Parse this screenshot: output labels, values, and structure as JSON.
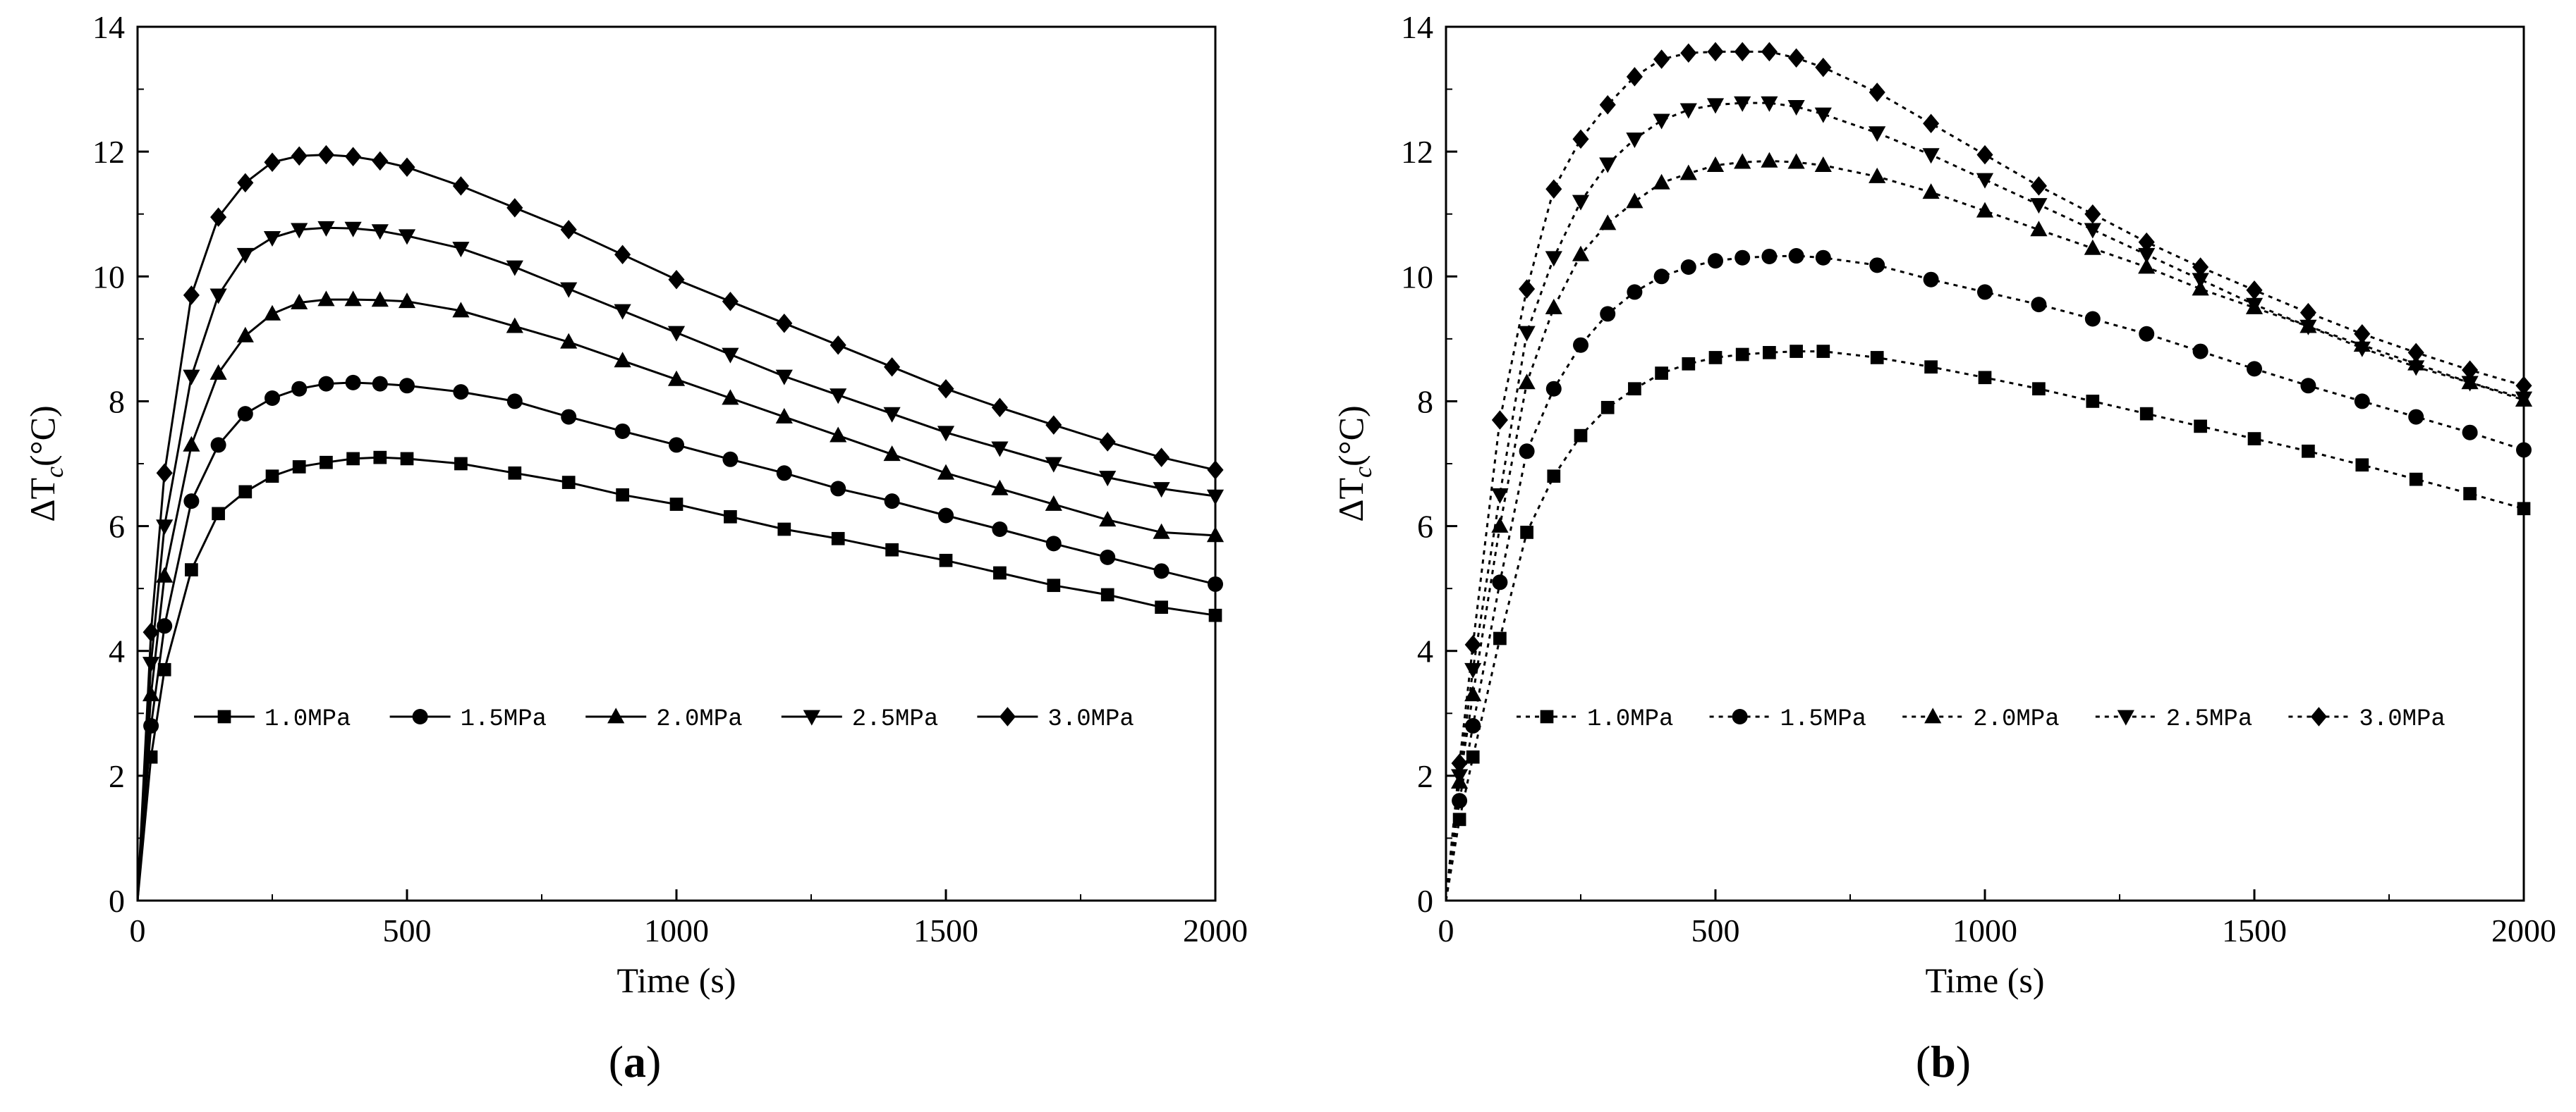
{
  "chart_data": [
    {
      "type": "line",
      "panel_label": "a",
      "xlabel": "Time (s)",
      "ylabel": "ΔT",
      "ylabel_subscript": "c",
      "ylabel_unit": "(°C)",
      "xlim": [
        0,
        2000
      ],
      "ylim": [
        0,
        14
      ],
      "xticks": [
        0,
        500,
        1000,
        1500,
        2000
      ],
      "yticks": [
        0,
        2,
        4,
        6,
        8,
        10,
        12,
        14
      ],
      "grid": false,
      "legend_position": "center, single row",
      "line_style": "solid",
      "color": "#000000",
      "x": [
        0,
        25,
        50,
        100,
        150,
        200,
        250,
        300,
        350,
        400,
        450,
        500,
        600,
        700,
        800,
        900,
        1000,
        1100,
        1200,
        1300,
        1400,
        1500,
        1600,
        1700,
        1800,
        1900,
        2000
      ],
      "series": [
        {
          "name": "1.0MPa",
          "marker": "square",
          "values": [
            0,
            2.3,
            3.7,
            5.3,
            6.2,
            6.55,
            6.8,
            6.95,
            7.02,
            7.08,
            7.1,
            7.08,
            7.0,
            6.85,
            6.7,
            6.5,
            6.35,
            6.15,
            5.95,
            5.8,
            5.62,
            5.45,
            5.25,
            5.05,
            4.9,
            4.7,
            4.57
          ]
        },
        {
          "name": "1.5MPa",
          "marker": "circle",
          "values": [
            0,
            2.8,
            4.4,
            6.4,
            7.3,
            7.8,
            8.05,
            8.2,
            8.28,
            8.3,
            8.28,
            8.25,
            8.15,
            8.0,
            7.75,
            7.52,
            7.3,
            7.07,
            6.85,
            6.6,
            6.4,
            6.17,
            5.95,
            5.72,
            5.5,
            5.28,
            5.07
          ]
        },
        {
          "name": "2.0MPa",
          "marker": "triangle-up",
          "values": [
            0,
            3.3,
            5.2,
            7.3,
            8.45,
            9.05,
            9.4,
            9.58,
            9.63,
            9.63,
            9.62,
            9.6,
            9.45,
            9.2,
            8.95,
            8.65,
            8.35,
            8.05,
            7.75,
            7.45,
            7.15,
            6.85,
            6.6,
            6.35,
            6.1,
            5.9,
            5.85
          ]
        },
        {
          "name": "2.5MPa",
          "marker": "triangle-down",
          "values": [
            0,
            3.8,
            6.0,
            8.4,
            9.7,
            10.35,
            10.62,
            10.75,
            10.78,
            10.77,
            10.73,
            10.65,
            10.45,
            10.15,
            9.8,
            9.45,
            9.1,
            8.75,
            8.4,
            8.1,
            7.8,
            7.5,
            7.25,
            7.0,
            6.78,
            6.6,
            6.48
          ]
        },
        {
          "name": "3.0MPa",
          "marker": "diamond",
          "values": [
            0,
            4.3,
            6.85,
            9.7,
            10.95,
            11.5,
            11.83,
            11.93,
            11.95,
            11.92,
            11.85,
            11.75,
            11.45,
            11.1,
            10.75,
            10.35,
            9.95,
            9.6,
            9.25,
            8.9,
            8.55,
            8.2,
            7.9,
            7.62,
            7.35,
            7.1,
            6.9
          ]
        }
      ]
    },
    {
      "type": "line",
      "panel_label": "b",
      "xlabel": "Time (s)",
      "ylabel": "ΔT",
      "ylabel_subscript": "c",
      "ylabel_unit": "(°C)",
      "xlim": [
        0,
        2000
      ],
      "ylim": [
        0,
        14
      ],
      "xticks": [
        0,
        500,
        1000,
        1500,
        2000
      ],
      "yticks": [
        0,
        2,
        4,
        6,
        8,
        10,
        12,
        14
      ],
      "grid": false,
      "legend_position": "lower center, single row",
      "line_style": "dotted",
      "color": "#000000",
      "x": [
        0,
        25,
        50,
        100,
        150,
        200,
        250,
        300,
        350,
        400,
        450,
        500,
        550,
        600,
        650,
        700,
        800,
        900,
        1000,
        1100,
        1200,
        1300,
        1400,
        1500,
        1600,
        1700,
        1800,
        1900,
        2000
      ],
      "series": [
        {
          "name": "1.0MPa",
          "marker": "square",
          "values": [
            0,
            1.3,
            2.3,
            4.2,
            5.9,
            6.8,
            7.45,
            7.9,
            8.2,
            8.45,
            8.6,
            8.7,
            8.75,
            8.78,
            8.8,
            8.8,
            8.7,
            8.55,
            8.38,
            8.2,
            8.0,
            7.8,
            7.6,
            7.4,
            7.2,
            6.98,
            6.75,
            6.52,
            6.28
          ]
        },
        {
          "name": "1.5MPa",
          "marker": "circle",
          "values": [
            0,
            1.6,
            2.8,
            5.1,
            7.2,
            8.2,
            8.9,
            9.4,
            9.75,
            10.0,
            10.15,
            10.25,
            10.3,
            10.32,
            10.33,
            10.3,
            10.18,
            9.95,
            9.75,
            9.55,
            9.32,
            9.08,
            8.8,
            8.52,
            8.25,
            8.0,
            7.75,
            7.5,
            7.22
          ]
        },
        {
          "name": "2.0MPa",
          "marker": "triangle-up",
          "values": [
            0,
            1.9,
            3.3,
            6.0,
            8.3,
            9.5,
            10.35,
            10.85,
            11.2,
            11.5,
            11.65,
            11.78,
            11.83,
            11.85,
            11.83,
            11.78,
            11.6,
            11.35,
            11.05,
            10.75,
            10.45,
            10.15,
            9.8,
            9.5,
            9.2,
            8.9,
            8.6,
            8.3,
            8.02
          ]
        },
        {
          "name": "2.5MPa",
          "marker": "triangle-down",
          "values": [
            0,
            2.0,
            3.7,
            6.5,
            9.1,
            10.3,
            11.2,
            11.8,
            12.2,
            12.5,
            12.67,
            12.75,
            12.78,
            12.78,
            12.72,
            12.6,
            12.3,
            11.95,
            11.55,
            11.15,
            10.75,
            10.35,
            9.95,
            9.55,
            9.2,
            8.85,
            8.55,
            8.3,
            8.05
          ]
        },
        {
          "name": "3.0MPa",
          "marker": "diamond",
          "values": [
            0,
            2.2,
            4.1,
            7.7,
            9.8,
            11.4,
            12.2,
            12.75,
            13.2,
            13.48,
            13.58,
            13.6,
            13.6,
            13.6,
            13.5,
            13.35,
            12.95,
            12.45,
            11.95,
            11.45,
            11.0,
            10.55,
            10.15,
            9.78,
            9.42,
            9.08,
            8.78,
            8.5,
            8.25
          ]
        }
      ]
    }
  ]
}
